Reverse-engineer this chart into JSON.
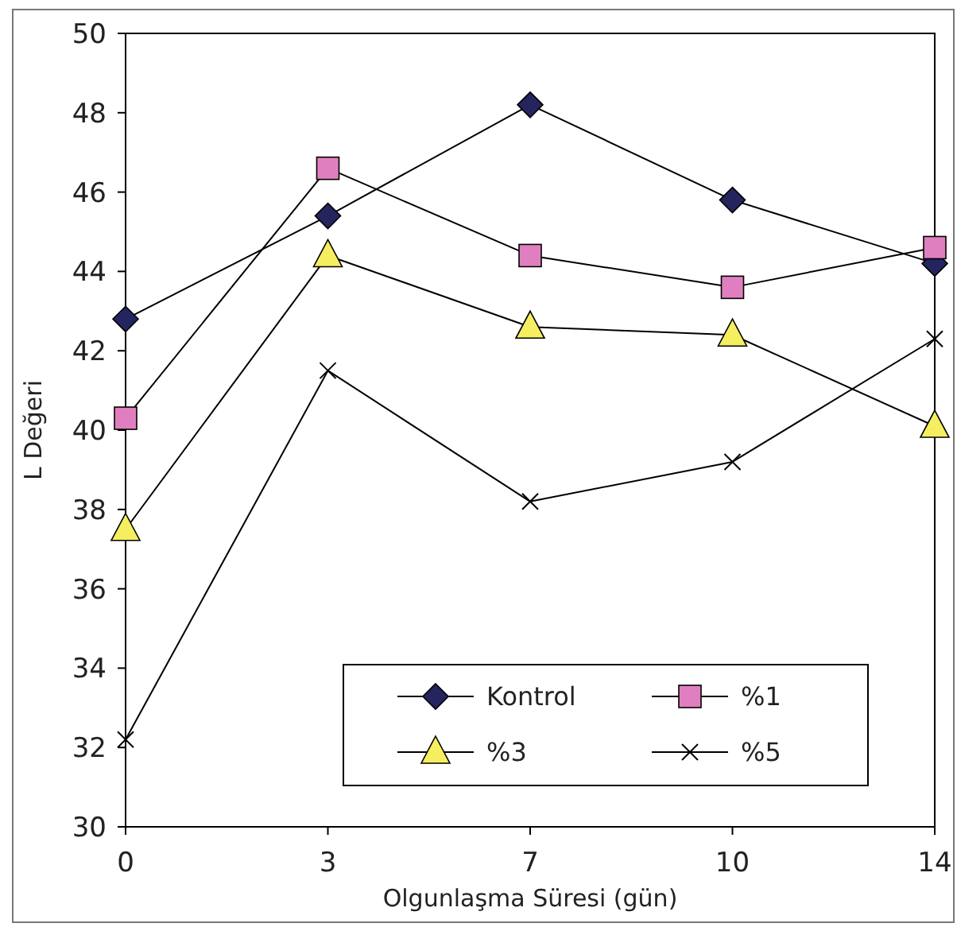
{
  "chart_data": {
    "type": "line",
    "xlabel": "Olgunlaşma Süresi (gün)",
    "ylabel": "L Değeri",
    "categories": [
      "0",
      "3",
      "7",
      "10",
      "14"
    ],
    "ylim": [
      30,
      50
    ],
    "yticks": [
      30,
      32,
      34,
      36,
      38,
      40,
      42,
      44,
      46,
      48,
      50
    ],
    "grid": false,
    "legend": "bottom right",
    "line_style": "solid",
    "series": [
      {
        "name": "Kontrol",
        "color": "#24245e",
        "marker": "diamond",
        "values": [
          42.8,
          45.4,
          48.2,
          45.8,
          44.2
        ]
      },
      {
        "name": "%1",
        "color": "#e07fbf",
        "marker": "square",
        "values": [
          40.3,
          46.6,
          44.4,
          43.6,
          44.6
        ]
      },
      {
        "name": "%3",
        "color": "#f5ee60",
        "marker": "triangle",
        "values": [
          37.5,
          44.4,
          42.6,
          42.4,
          40.1
        ]
      },
      {
        "name": "%5",
        "color": "#000000",
        "marker": "cross",
        "values": [
          32.2,
          41.5,
          38.2,
          39.2,
          42.3
        ]
      }
    ]
  }
}
